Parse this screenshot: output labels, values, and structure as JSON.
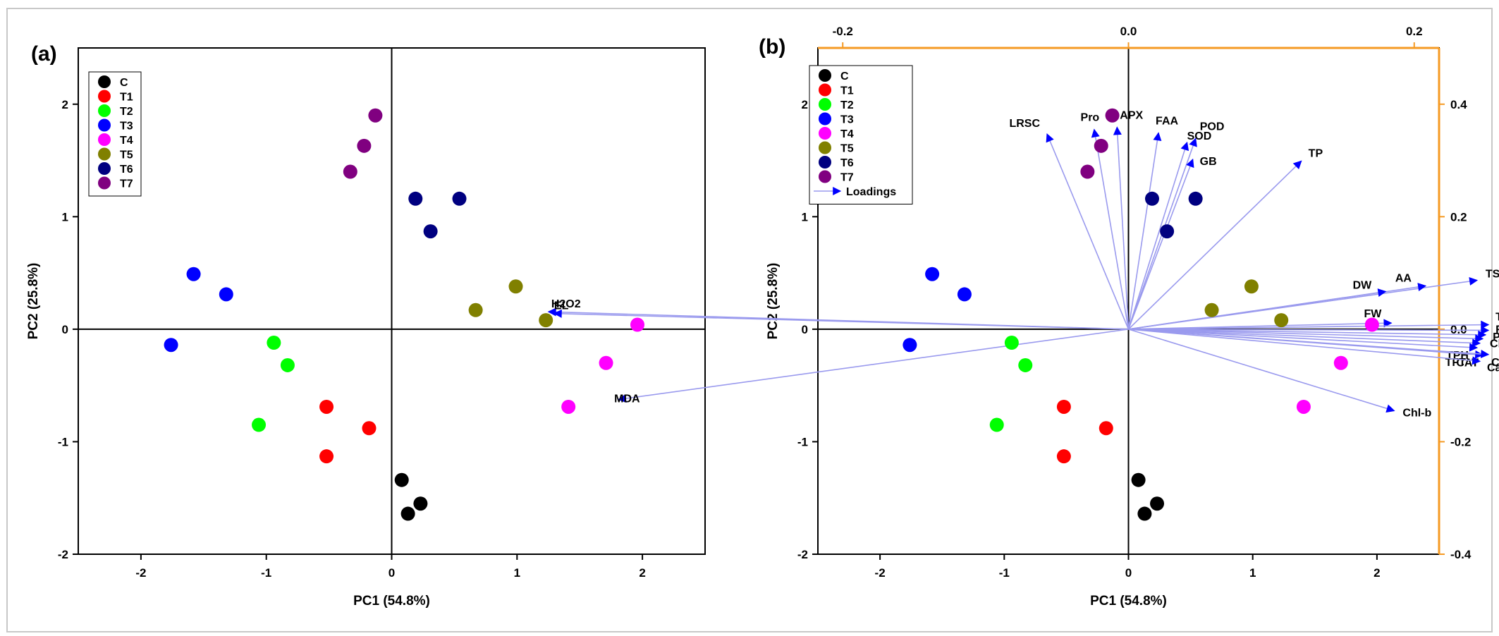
{
  "figure": {
    "colors": {
      "C": "#000000",
      "T1": "#ff0000",
      "T2": "#00ff00",
      "T3": "#0000ff",
      "T4": "#ff00ff",
      "T5": "#808000",
      "T6": "#000080",
      "T7": "#800080",
      "loading": "#0000ff",
      "loading_line": "#9a9aee",
      "right_axis": "#f59a23",
      "frame": "#c8c8c8"
    }
  },
  "chart_data": [
    {
      "type": "scatter",
      "panel_label": "(a)",
      "xlabel": "PC1 (54.8%)",
      "ylabel": "PC2 (25.8%)",
      "xlim": [
        -2.5,
        2.5
      ],
      "ylim": [
        -2,
        2.5
      ],
      "x_ticks": [
        -2,
        -1,
        0,
        1,
        2
      ],
      "y_ticks": [
        -2,
        -1,
        0,
        1,
        2
      ],
      "legend": [
        "C",
        "T1",
        "T2",
        "T3",
        "T4",
        "T5",
        "T6",
        "T7"
      ],
      "series": [
        {
          "name": "C",
          "points": [
            [
              0.08,
              -1.34
            ],
            [
              0.13,
              -1.64
            ],
            [
              0.23,
              -1.55
            ]
          ]
        },
        {
          "name": "T1",
          "points": [
            [
              -0.52,
              -0.69
            ],
            [
              -0.52,
              -1.13
            ],
            [
              -0.18,
              -0.88
            ]
          ]
        },
        {
          "name": "T2",
          "points": [
            [
              -0.94,
              -0.12
            ],
            [
              -0.83,
              -0.32
            ],
            [
              -1.06,
              -0.85
            ]
          ]
        },
        {
          "name": "T3",
          "points": [
            [
              -1.58,
              0.49
            ],
            [
              -1.32,
              0.31
            ],
            [
              -1.76,
              -0.14
            ]
          ]
        },
        {
          "name": "T4",
          "points": [
            [
              1.96,
              0.04
            ],
            [
              1.71,
              -0.3
            ],
            [
              1.41,
              -0.69
            ]
          ]
        },
        {
          "name": "T5",
          "points": [
            [
              0.67,
              0.17
            ],
            [
              0.99,
              0.38
            ],
            [
              1.23,
              0.08
            ]
          ]
        },
        {
          "name": "T6",
          "points": [
            [
              0.19,
              1.16
            ],
            [
              0.54,
              1.16
            ],
            [
              0.31,
              0.87
            ]
          ]
        },
        {
          "name": "T7",
          "points": [
            [
              -0.13,
              1.9
            ],
            [
              -0.22,
              1.63
            ],
            [
              -0.33,
              1.4
            ]
          ]
        }
      ]
    },
    {
      "type": "scatter",
      "subtype": "biplot",
      "panel_label": "(b)",
      "xlabel": "PC1 (54.8%)",
      "ylabel": "PC2 (25.8%)",
      "xlim": [
        -2.5,
        2.5
      ],
      "ylim": [
        -2,
        2.5
      ],
      "x_ticks": [
        -2,
        -1,
        0,
        1,
        2
      ],
      "y_ticks": [
        -2,
        -1,
        0,
        1,
        2
      ],
      "top_ticks": [
        -0.2,
        0.0,
        0.2
      ],
      "top_ticks_labels": [
        "-0.2",
        "0.0",
        "0.2"
      ],
      "right_ticks": [
        -0.4,
        -0.2,
        0.0,
        0.2,
        0.4
      ],
      "right_ticks_labels": [
        "-0.4",
        "-0.2",
        "0.0",
        "0.2",
        "0.4"
      ],
      "loadings_scale": 5,
      "legend": [
        "C",
        "T1",
        "T2",
        "T3",
        "T4",
        "T5",
        "T6",
        "T7",
        "Loadings"
      ],
      "series": [
        {
          "name": "C",
          "points": [
            [
              0.08,
              -1.34
            ],
            [
              0.13,
              -1.64
            ],
            [
              0.23,
              -1.55
            ]
          ]
        },
        {
          "name": "T1",
          "points": [
            [
              -0.52,
              -0.69
            ],
            [
              -0.52,
              -1.13
            ],
            [
              -0.18,
              -0.88
            ]
          ]
        },
        {
          "name": "T2",
          "points": [
            [
              -0.94,
              -0.12
            ],
            [
              -0.83,
              -0.32
            ],
            [
              -1.06,
              -0.85
            ]
          ]
        },
        {
          "name": "T3",
          "points": [
            [
              -1.58,
              0.49
            ],
            [
              -1.32,
              0.31
            ],
            [
              -1.76,
              -0.14
            ]
          ]
        },
        {
          "name": "T4",
          "points": [
            [
              1.96,
              0.04
            ],
            [
              1.71,
              -0.3
            ],
            [
              1.41,
              -0.69
            ]
          ]
        },
        {
          "name": "T5",
          "points": [
            [
              0.67,
              0.17
            ],
            [
              0.99,
              0.38
            ],
            [
              1.23,
              0.08
            ]
          ]
        },
        {
          "name": "T6",
          "points": [
            [
              0.19,
              1.16
            ],
            [
              0.54,
              1.16
            ],
            [
              0.31,
              0.87
            ]
          ]
        },
        {
          "name": "T7",
          "points": [
            [
              -0.13,
              1.9
            ],
            [
              -0.22,
              1.63
            ],
            [
              -0.33,
              1.4
            ]
          ]
        }
      ],
      "loadings": [
        {
          "label": "LRSC",
          "x": -0.057,
          "y": 0.347
        },
        {
          "label": "Pro",
          "x": -0.024,
          "y": 0.355
        },
        {
          "label": "APX",
          "x": -0.008,
          "y": 0.359
        },
        {
          "label": "FAA",
          "x": 0.021,
          "y": 0.349
        },
        {
          "label": "SOD",
          "x": 0.041,
          "y": 0.332
        },
        {
          "label": "POD",
          "x": 0.047,
          "y": 0.339
        },
        {
          "label": "GB",
          "x": 0.045,
          "y": 0.302
        },
        {
          "label": "TP",
          "x": 0.121,
          "y": 0.299
        },
        {
          "label": "TSS",
          "x": 0.244,
          "y": 0.087
        },
        {
          "label": "AA",
          "x": 0.208,
          "y": 0.077
        },
        {
          "label": "DW",
          "x": 0.18,
          "y": 0.067
        },
        {
          "label": "FW",
          "x": 0.184,
          "y": 0.011
        },
        {
          "label": "TFC",
          "x": 0.252,
          "y": 0.008
        },
        {
          "label": "RWC",
          "x": 0.252,
          "y": -0.002
        },
        {
          "label": "PEs",
          "x": 0.25,
          "y": -0.01
        },
        {
          "label": "Chl-a",
          "x": 0.248,
          "y": -0.017
        },
        {
          "label": "TPH",
          "x": 0.246,
          "y": -0.025
        },
        {
          "label": "TFT",
          "x": 0.244,
          "y": -0.033
        },
        {
          "label": "CAT",
          "x": 0.248,
          "y": -0.046
        },
        {
          "label": "Chl",
          "x": 0.252,
          "y": -0.045
        },
        {
          "label": "Carot.",
          "x": 0.246,
          "y": -0.057
        },
        {
          "label": "Chl-b",
          "x": 0.186,
          "y": -0.145
        },
        {
          "label": "H2O2",
          "x": -0.406,
          "y": 0.031
        },
        {
          "label": "EL",
          "x": -0.402,
          "y": 0.028
        },
        {
          "label": "MDA",
          "x": -0.357,
          "y": -0.125
        }
      ]
    }
  ]
}
